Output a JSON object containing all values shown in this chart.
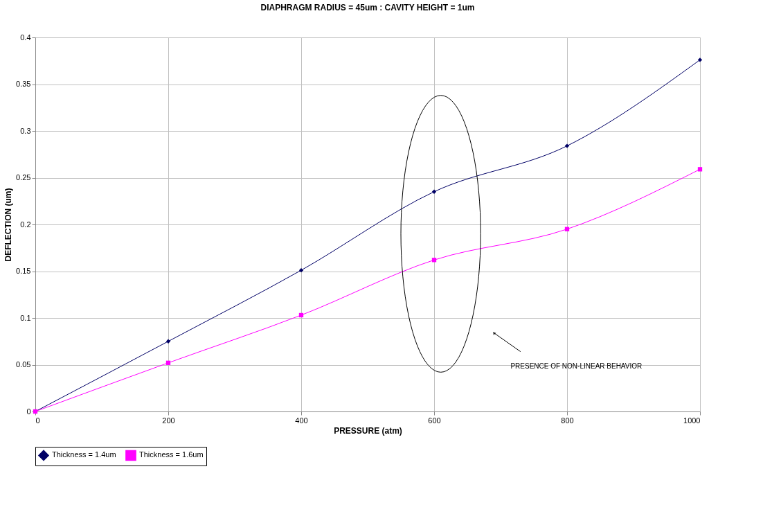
{
  "chart_data": {
    "type": "line",
    "title": "DIAPHRAGM RADIUS = 45um : CAVITY HEIGHT = 1um",
    "xlabel": "PRESSURE (atm)",
    "ylabel": "DEFLECTION (um)",
    "x": [
      0,
      200,
      400,
      600,
      800,
      1000
    ],
    "series": [
      {
        "name": "Thickness = 1.4um",
        "color": "#000066",
        "marker": "diamond",
        "values": [
          0,
          0.075,
          0.151,
          0.235,
          0.284,
          0.376
        ]
      },
      {
        "name": "Thickness = 1.6um",
        "color": "#ff00ff",
        "marker": "square",
        "values": [
          0,
          0.052,
          0.103,
          0.162,
          0.195,
          0.259
        ]
      }
    ],
    "xlim": [
      0,
      1000
    ],
    "xticks": [
      0,
      200,
      400,
      600,
      800,
      1000
    ],
    "ylim": [
      0,
      0.4
    ],
    "yticks": [
      0,
      0.05,
      0.1,
      0.15,
      0.2,
      0.25,
      0.3,
      0.35,
      0.4
    ],
    "grid": true,
    "legend": "bottom",
    "line_style": "solid",
    "annotations": [
      "PRESENCE OF NON-LINEAR BEHAVIOR"
    ]
  }
}
